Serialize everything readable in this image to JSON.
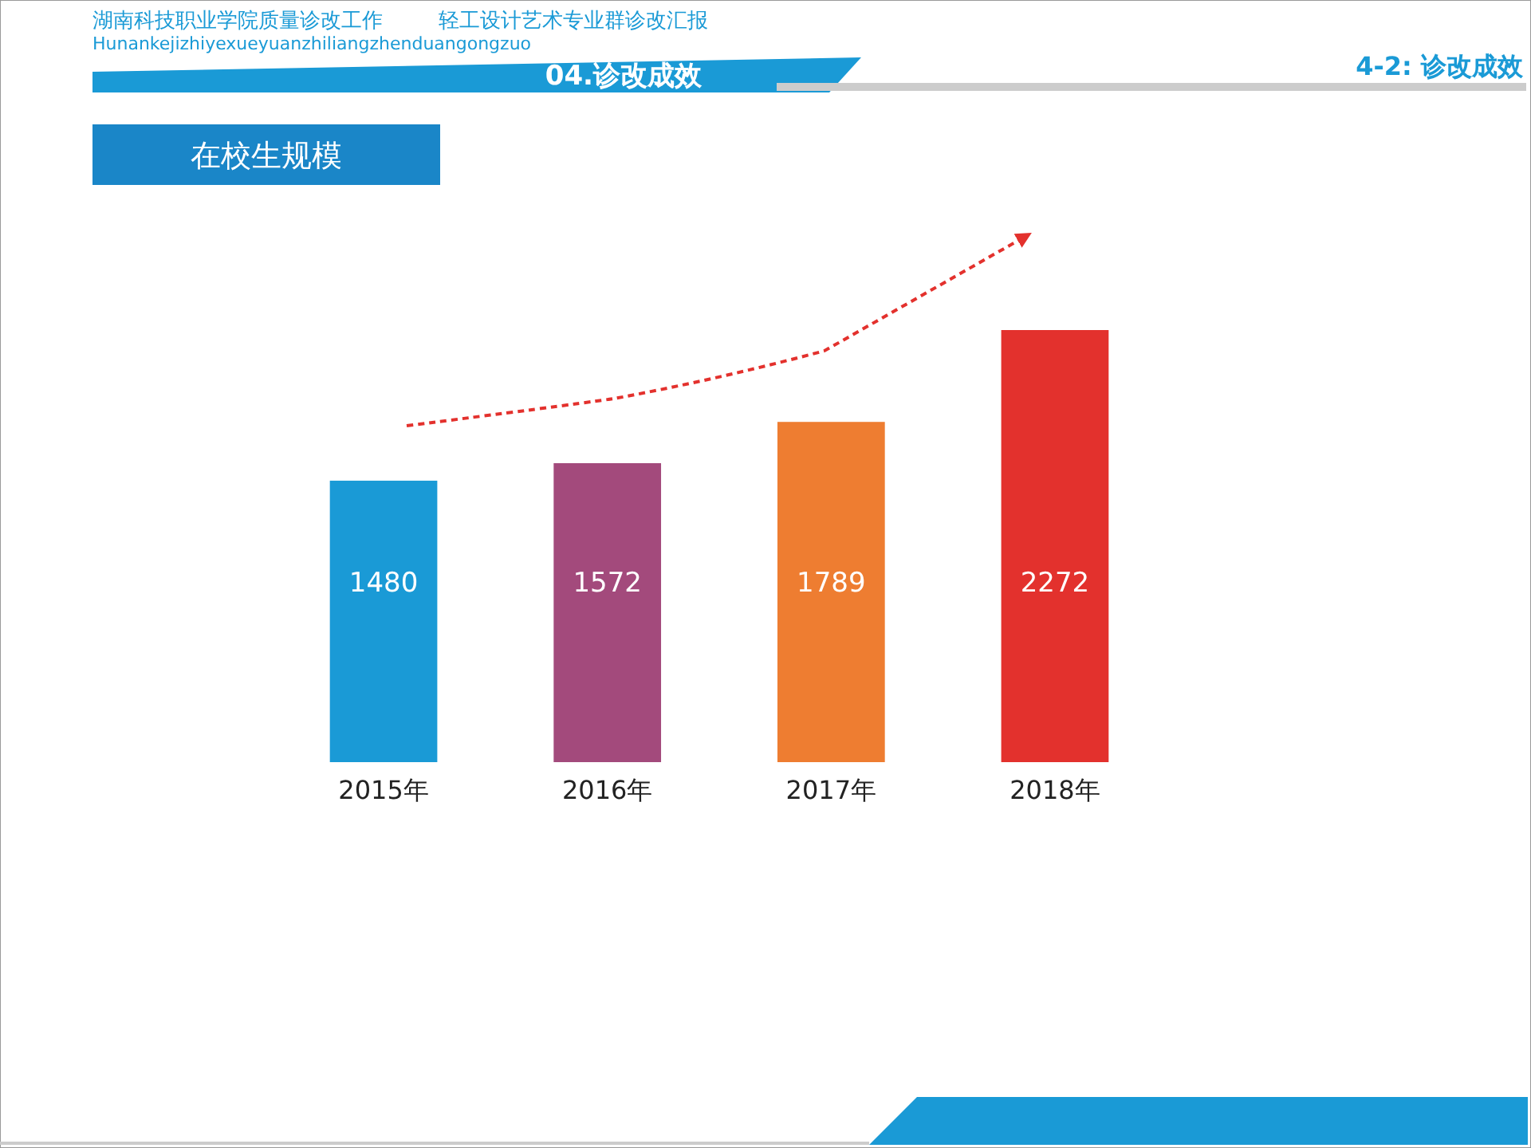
{
  "chart_data": {
    "type": "bar",
    "title": "在校生规模",
    "annotations": [
      "湖南科技职业学院质量诊改工作",
      "轻工设计艺术专业群诊改汇报",
      "Hunankejizhiyexueyuanzhiliangzhenduangongzuo",
      "04.诊改成效",
      "4-2: 诊改成效"
    ],
    "categories": [
      "2015年",
      "2016年",
      "2017年",
      "2018年"
    ],
    "values": [
      1480,
      1572,
      1789,
      2272
    ],
    "colors": [
      "#1a9ad6",
      "#a34a7c",
      "#ee7d31",
      "#e3312d"
    ],
    "data_labels": true
  }
}
